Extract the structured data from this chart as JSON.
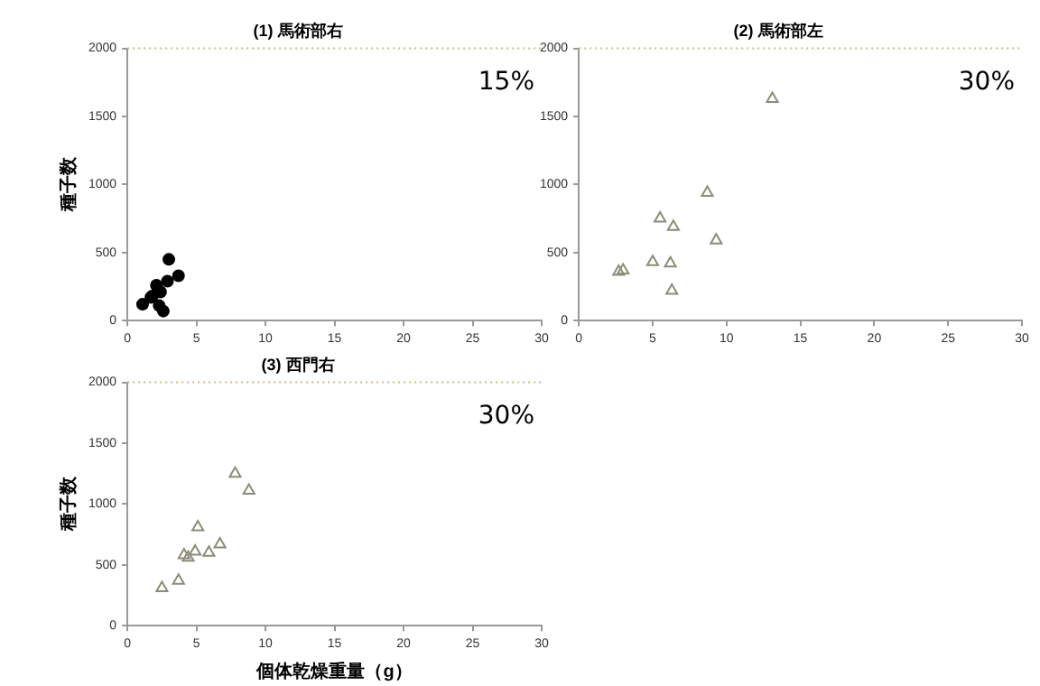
{
  "chart_data": [
    {
      "type": "scatter",
      "title": "(1) 馬術部右",
      "ylabel": "種子数",
      "marker": "circle",
      "grid": false,
      "legend": false,
      "xlim": [
        0,
        30
      ],
      "xticks": [
        0,
        5,
        10,
        15,
        20,
        25,
        30
      ],
      "ylim": [
        0,
        2000
      ],
      "yticks": [
        0,
        500,
        1000,
        1500,
        2000
      ],
      "annotations": [
        "15%"
      ],
      "series": [
        {
          "color": "#000000",
          "x": [
            1.1,
            1.7,
            1.8,
            2.1,
            2.4,
            2.3,
            2.6,
            2.9,
            3.0,
            3.7
          ],
          "values": [
            120,
            170,
            180,
            260,
            210,
            110,
            70,
            290,
            450,
            330
          ]
        }
      ]
    },
    {
      "type": "scatter",
      "title": "(2) 馬術部左",
      "marker": "triangle",
      "grid": false,
      "legend": false,
      "xlim": [
        0,
        30
      ],
      "xticks": [
        0,
        5,
        10,
        15,
        20,
        25,
        30
      ],
      "ylim": [
        0,
        2000
      ],
      "yticks": [
        0,
        500,
        1000,
        1500,
        2000
      ],
      "annotations": [
        "30%"
      ],
      "series": [
        {
          "color": "#8c8c78",
          "x": [
            2.7,
            3.0,
            5.0,
            5.5,
            6.2,
            6.4,
            6.3,
            8.7,
            9.3,
            13.1
          ],
          "values": [
            360,
            370,
            430,
            750,
            420,
            690,
            220,
            940,
            590,
            1630
          ]
        }
      ]
    },
    {
      "type": "scatter",
      "title": "(3) 西門右",
      "xlabel": "個体乾燥重量（g）",
      "ylabel": "種子数",
      "marker": "triangle",
      "grid": false,
      "legend": false,
      "xlim": [
        0,
        30
      ],
      "xticks": [
        0,
        5,
        10,
        15,
        20,
        25,
        30
      ],
      "ylim": [
        0,
        2000
      ],
      "yticks": [
        0,
        500,
        1000,
        1500,
        2000
      ],
      "annotations": [
        "30%"
      ],
      "series": [
        {
          "color": "#8c8c78",
          "x": [
            2.5,
            3.7,
            4.1,
            4.4,
            4.9,
            5.1,
            5.9,
            6.7,
            7.8,
            8.8
          ],
          "values": [
            310,
            370,
            580,
            560,
            610,
            810,
            600,
            670,
            1250,
            1110
          ]
        }
      ]
    }
  ]
}
